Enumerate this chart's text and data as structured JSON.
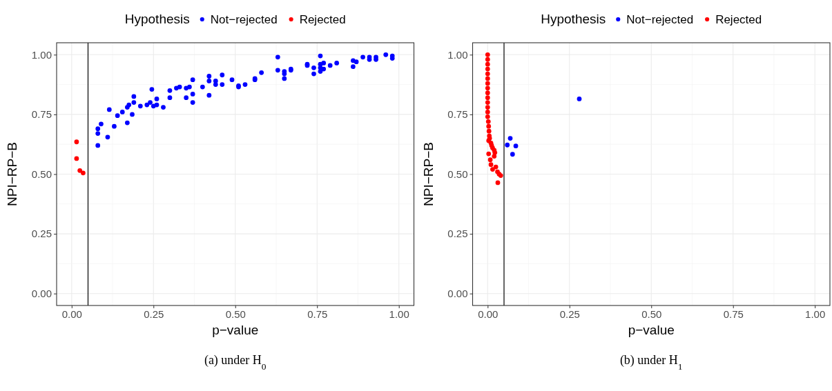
{
  "chart_data": [
    {
      "type": "scatter",
      "xlabel": "p−value",
      "ylabel": "NPI−RP−B",
      "legend_title": "Hypothesis",
      "legend": "top",
      "grid": true,
      "marker": "circle",
      "xlim": [
        -0.046,
        1.046
      ],
      "ylim": [
        -0.05,
        1.05
      ],
      "xticks": [
        {
          "value": 0,
          "label": "0.00"
        },
        {
          "value": 0.25,
          "label": "0.25"
        },
        {
          "value": 0.5,
          "label": "0.50"
        },
        {
          "value": 0.75,
          "label": "0.75"
        },
        {
          "value": 1,
          "label": "1.00"
        }
      ],
      "yticks": [
        {
          "value": 0,
          "label": "0.00"
        },
        {
          "value": 0.25,
          "label": "0.25"
        },
        {
          "value": 0.5,
          "label": "0.50"
        },
        {
          "value": 0.75,
          "label": "0.75"
        },
        {
          "value": 1,
          "label": "1.00"
        }
      ],
      "ref_lines": [
        {
          "axis": "x",
          "value": 0.05,
          "label": null,
          "color": "#000000"
        }
      ],
      "annotations": [
        "(a) under H$_{0}$"
      ],
      "series": [
        {
          "name": "Not−rejected",
          "color": "#0000ff",
          "x": [
            0.08,
            0.08,
            0.08,
            0.09,
            0.11,
            0.115,
            0.13,
            0.14,
            0.155,
            0.17,
            0.17,
            0.175,
            0.185,
            0.19,
            0.19,
            0.21,
            0.23,
            0.24,
            0.245,
            0.25,
            0.26,
            0.26,
            0.28,
            0.3,
            0.3,
            0.32,
            0.33,
            0.35,
            0.35,
            0.36,
            0.37,
            0.37,
            0.37,
            0.4,
            0.42,
            0.42,
            0.42,
            0.44,
            0.44,
            0.46,
            0.46,
            0.49,
            0.51,
            0.51,
            0.53,
            0.56,
            0.56,
            0.58,
            0.63,
            0.63,
            0.65,
            0.65,
            0.65,
            0.67,
            0.67,
            0.72,
            0.72,
            0.74,
            0.74,
            0.76,
            0.76,
            0.76,
            0.76,
            0.77,
            0.77,
            0.79,
            0.81,
            0.86,
            0.86,
            0.87,
            0.89,
            0.91,
            0.91,
            0.93,
            0.93,
            0.96,
            0.98,
            0.98
          ],
          "values": [
            0.62,
            0.67,
            0.69,
            0.71,
            0.655,
            0.77,
            0.7,
            0.745,
            0.76,
            0.715,
            0.78,
            0.79,
            0.75,
            0.8,
            0.825,
            0.785,
            0.79,
            0.8,
            0.855,
            0.785,
            0.79,
            0.815,
            0.78,
            0.82,
            0.85,
            0.86,
            0.865,
            0.82,
            0.86,
            0.865,
            0.8,
            0.835,
            0.895,
            0.865,
            0.83,
            0.89,
            0.91,
            0.875,
            0.89,
            0.875,
            0.915,
            0.895,
            0.87,
            0.865,
            0.875,
            0.9,
            0.895,
            0.925,
            0.99,
            0.935,
            0.92,
            0.9,
            0.93,
            0.94,
            0.935,
            0.96,
            0.955,
            0.92,
            0.945,
            0.995,
            0.96,
            0.945,
            0.93,
            0.965,
            0.94,
            0.955,
            0.965,
            0.975,
            0.95,
            0.97,
            0.99,
            0.98,
            0.99,
            0.98,
            0.99,
            1.0,
            0.995,
            0.985
          ]
        },
        {
          "name": "Rejected",
          "color": "#ff0000",
          "x": [
            0.015,
            0.015,
            0.025,
            0.035
          ],
          "values": [
            0.635,
            0.565,
            0.515,
            0.505
          ]
        }
      ]
    },
    {
      "type": "scatter",
      "xlabel": "p−value",
      "ylabel": "NPI−RP−B",
      "legend_title": "Hypothesis",
      "legend": "top",
      "grid": true,
      "marker": "circle",
      "xlim": [
        -0.046,
        1.046
      ],
      "ylim": [
        -0.05,
        1.05
      ],
      "xticks": [
        {
          "value": 0,
          "label": "0.00"
        },
        {
          "value": 0.25,
          "label": "0.25"
        },
        {
          "value": 0.5,
          "label": "0.50"
        },
        {
          "value": 0.75,
          "label": "0.75"
        },
        {
          "value": 1,
          "label": "1.00"
        }
      ],
      "yticks": [
        {
          "value": 0,
          "label": "0.00"
        },
        {
          "value": 0.25,
          "label": "0.25"
        },
        {
          "value": 0.5,
          "label": "0.50"
        },
        {
          "value": 0.75,
          "label": "0.75"
        },
        {
          "value": 1,
          "label": "1.00"
        }
      ],
      "ref_lines": [
        {
          "axis": "x",
          "value": 0.05,
          "label": null,
          "color": "#000000"
        }
      ],
      "annotations": [
        "(b) under H$_{1}$"
      ],
      "series": [
        {
          "name": "Not−rejected",
          "color": "#0000ff",
          "x": [
            0.069,
            0.06,
            0.086,
            0.076,
            0.28
          ],
          "values": [
            0.65,
            0.622,
            0.618,
            0.583,
            0.815
          ]
        },
        {
          "name": "Rejected",
          "color": "#ff0000",
          "x": [
            0,
            0,
            0,
            0,
            0,
            0,
            0,
            0,
            0,
            0,
            0,
            0,
            0,
            0,
            0.002,
            0.003,
            0.004,
            0.005,
            0.006,
            0.003,
            0.01,
            0.012,
            0.015,
            0.02,
            0.022,
            0.003,
            0.02,
            0.008,
            0.01,
            0.025,
            0.015,
            0.03,
            0.035,
            0.04,
            0.031
          ],
          "values": [
            1.0,
            0.98,
            0.96,
            0.94,
            0.92,
            0.9,
            0.88,
            0.86,
            0.84,
            0.82,
            0.8,
            0.78,
            0.76,
            0.74,
            0.72,
            0.7,
            0.68,
            0.66,
            0.65,
            0.64,
            0.63,
            0.62,
            0.61,
            0.6,
            0.59,
            0.585,
            0.575,
            0.56,
            0.54,
            0.53,
            0.52,
            0.51,
            0.5,
            0.494,
            0.464
          ]
        }
      ]
    }
  ]
}
